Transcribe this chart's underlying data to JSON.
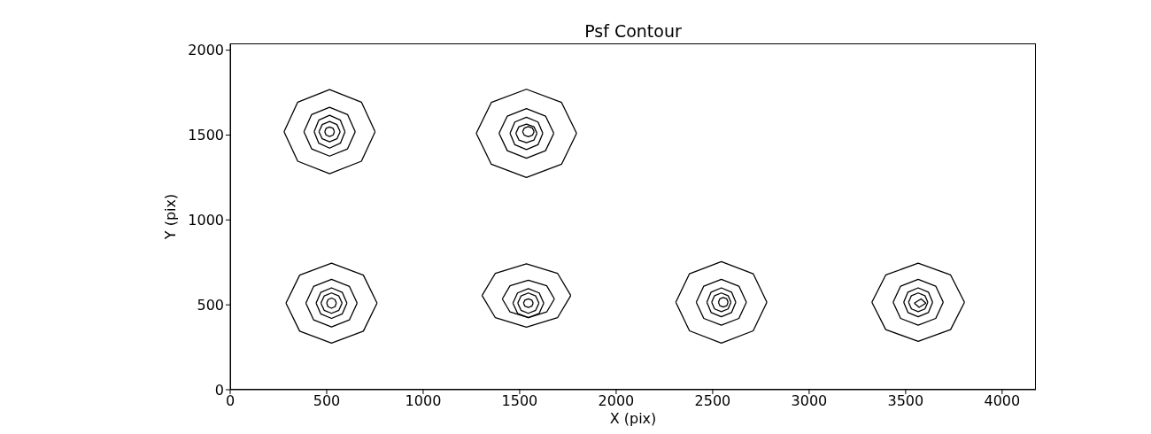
{
  "chart_data": {
    "type": "line",
    "title": "Psf Contour",
    "xlabel": "X (pix)",
    "ylabel": "Y (pix)",
    "xlim": [
      0,
      4175
    ],
    "ylim": [
      0,
      2040
    ],
    "xticks": [
      0,
      500,
      1000,
      1500,
      2000,
      2500,
      3000,
      3500,
      4000
    ],
    "yticks": [
      0,
      500,
      1000,
      1500,
      2000
    ],
    "marker": "none",
    "line_style": "solid",
    "series": [
      {
        "color": "#000000",
        "x": [
          279,
          350,
          515,
          680,
          751
        ],
        "values": [
          1520,
          1694,
          1768,
          1694,
          1520
        ]
      },
      {
        "color": "#000000",
        "x": [
          279,
          350,
          515,
          680,
          751
        ],
        "values": [
          1520,
          1346,
          1272,
          1346,
          1520
        ]
      },
      {
        "color": "#000000",
        "x": [
          382,
          422,
          515,
          608,
          648
        ],
        "values": [
          1520,
          1621,
          1664,
          1621,
          1520
        ]
      },
      {
        "color": "#000000",
        "x": [
          382,
          422,
          515,
          608,
          648
        ],
        "values": [
          1520,
          1419,
          1376,
          1419,
          1520
        ]
      },
      {
        "color": "#000000",
        "x": [
          435,
          459,
          515,
          571,
          595
        ],
        "values": [
          1520,
          1588,
          1617,
          1588,
          1520
        ]
      },
      {
        "color": "#000000",
        "x": [
          435,
          459,
          515,
          571,
          595
        ],
        "values": [
          1520,
          1452,
          1423,
          1452,
          1520
        ]
      },
      {
        "color": "#000000",
        "x": [
          460,
          477,
          515,
          553,
          570
        ],
        "values": [
          1520,
          1562,
          1580,
          1562,
          1520
        ]
      },
      {
        "color": "#000000",
        "x": [
          460,
          477,
          515,
          553,
          570
        ],
        "values": [
          1520,
          1478,
          1460,
          1478,
          1520
        ]
      },
      {
        "color": "#000000",
        "x": [
          490,
          497,
          515,
          533,
          540
        ],
        "values": [
          1520,
          1540,
          1548,
          1540,
          1520
        ]
      },
      {
        "color": "#000000",
        "x": [
          490,
          497,
          515,
          533,
          540
        ],
        "values": [
          1520,
          1500,
          1492,
          1500,
          1520
        ]
      },
      {
        "color": "#000000",
        "x": [
          1275,
          1353,
          1535,
          1717,
          1795
        ],
        "values": [
          1510,
          1692,
          1770,
          1692,
          1510
        ]
      },
      {
        "color": "#000000",
        "x": [
          1275,
          1353,
          1535,
          1717,
          1795
        ],
        "values": [
          1510,
          1328,
          1250,
          1328,
          1510
        ]
      },
      {
        "color": "#000000",
        "x": [
          1393,
          1436,
          1535,
          1634,
          1677
        ],
        "values": [
          1510,
          1612,
          1656,
          1612,
          1510
        ]
      },
      {
        "color": "#000000",
        "x": [
          1393,
          1436,
          1535,
          1634,
          1677
        ],
        "values": [
          1510,
          1408,
          1364,
          1408,
          1510
        ]
      },
      {
        "color": "#000000",
        "x": [
          1450,
          1475,
          1535,
          1595,
          1620
        ],
        "values": [
          1510,
          1577,
          1605,
          1577,
          1510
        ]
      },
      {
        "color": "#000000",
        "x": [
          1450,
          1475,
          1535,
          1595,
          1620
        ],
        "values": [
          1510,
          1443,
          1415,
          1443,
          1510
        ]
      },
      {
        "color": "#000000",
        "x": [
          1480,
          1496,
          1535,
          1574,
          1590
        ],
        "values": [
          1510,
          1549,
          1565,
          1549,
          1510
        ]
      },
      {
        "color": "#000000",
        "x": [
          1480,
          1496,
          1535,
          1574,
          1590
        ],
        "values": [
          1510,
          1471,
          1455,
          1471,
          1510
        ]
      },
      {
        "color": "#000000",
        "x": [
          1515,
          1524,
          1545,
          1566,
          1575
        ],
        "values": [
          1520,
          1541,
          1550,
          1541,
          1520
        ]
      },
      {
        "color": "#000000",
        "x": [
          1515,
          1524,
          1545,
          1566,
          1575
        ],
        "values": [
          1520,
          1499,
          1490,
          1499,
          1520
        ]
      },
      {
        "color": "#000000",
        "x": [
          289,
          360,
          525,
          690,
          761
        ],
        "values": [
          510,
          675,
          745,
          675,
          510
        ]
      },
      {
        "color": "#000000",
        "x": [
          289,
          360,
          525,
          690,
          761
        ],
        "values": [
          510,
          345,
          275,
          345,
          510
        ]
      },
      {
        "color": "#000000",
        "x": [
          392,
          432,
          525,
          618,
          658
        ],
        "values": [
          510,
          608,
          650,
          608,
          510
        ]
      },
      {
        "color": "#000000",
        "x": [
          392,
          432,
          525,
          618,
          658
        ],
        "values": [
          510,
          412,
          370,
          412,
          510
        ]
      },
      {
        "color": "#000000",
        "x": [
          445,
          469,
          525,
          581,
          605
        ],
        "values": [
          510,
          573,
          600,
          573,
          510
        ]
      },
      {
        "color": "#000000",
        "x": [
          445,
          469,
          525,
          581,
          605
        ],
        "values": [
          510,
          447,
          420,
          447,
          510
        ]
      },
      {
        "color": "#000000",
        "x": [
          470,
          487,
          525,
          563,
          580
        ],
        "values": [
          510,
          552,
          570,
          552,
          510
        ]
      },
      {
        "color": "#000000",
        "x": [
          470,
          487,
          525,
          563,
          580
        ],
        "values": [
          510,
          468,
          450,
          468,
          510
        ]
      },
      {
        "color": "#000000",
        "x": [
          500,
          507,
          525,
          543,
          550
        ],
        "values": [
          510,
          531,
          540,
          531,
          510
        ]
      },
      {
        "color": "#000000",
        "x": [
          500,
          507,
          525,
          543,
          550
        ],
        "values": [
          510,
          489,
          480,
          489,
          510
        ]
      },
      {
        "color": "#000000",
        "x": [
          1305,
          1374,
          1535,
          1696,
          1765
        ],
        "values": [
          555,
          686,
          742,
          686,
          555
        ]
      },
      {
        "color": "#000000",
        "x": [
          1305,
          1374,
          1535,
          1696,
          1765
        ],
        "values": [
          555,
          424,
          368,
          424,
          555
        ]
      },
      {
        "color": "#000000",
        "x": [
          1410,
          1450,
          1545,
          1640,
          1680
        ],
        "values": [
          535,
          612,
          645,
          612,
          535
        ]
      },
      {
        "color": "#000000",
        "x": [
          1410,
          1450,
          1545,
          1640,
          1680
        ],
        "values": [
          535,
          458,
          425,
          458,
          535
        ]
      },
      {
        "color": "#000000",
        "x": [
          1465,
          1489,
          1545,
          1601,
          1625
        ],
        "values": [
          510,
          570,
          595,
          570,
          510
        ]
      },
      {
        "color": "#000000",
        "x": [
          1465,
          1489,
          1545,
          1601,
          1625
        ],
        "values": [
          510,
          450,
          425,
          450,
          510
        ]
      },
      {
        "color": "#000000",
        "x": [
          1490,
          1507,
          1545,
          1583,
          1600
        ],
        "values": [
          510,
          552,
          570,
          552,
          510
        ]
      },
      {
        "color": "#000000",
        "x": [
          1490,
          1507,
          1545,
          1583,
          1600
        ],
        "values": [
          510,
          468,
          450,
          468,
          510
        ]
      },
      {
        "color": "#000000",
        "x": [
          1520,
          1527,
          1545,
          1563,
          1570
        ],
        "values": [
          510,
          528,
          535,
          528,
          510
        ]
      },
      {
        "color": "#000000",
        "x": [
          1520,
          1527,
          1545,
          1563,
          1570
        ],
        "values": [
          510,
          492,
          485,
          492,
          510
        ]
      },
      {
        "color": "#000000",
        "x": [
          2309,
          2380,
          2545,
          2710,
          2781
        ],
        "values": [
          515,
          683,
          755,
          683,
          515
        ]
      },
      {
        "color": "#000000",
        "x": [
          2309,
          2380,
          2545,
          2710,
          2781
        ],
        "values": [
          515,
          347,
          275,
          347,
          515
        ]
      },
      {
        "color": "#000000",
        "x": [
          2415,
          2454,
          2545,
          2636,
          2675
        ],
        "values": [
          515,
          610,
          650,
          610,
          515
        ]
      },
      {
        "color": "#000000",
        "x": [
          2415,
          2454,
          2545,
          2636,
          2675
        ],
        "values": [
          515,
          420,
          380,
          420,
          515
        ]
      },
      {
        "color": "#000000",
        "x": [
          2470,
          2492,
          2545,
          2598,
          2620
        ],
        "values": [
          515,
          575,
          600,
          575,
          515
        ]
      },
      {
        "color": "#000000",
        "x": [
          2470,
          2492,
          2545,
          2598,
          2620
        ],
        "values": [
          515,
          455,
          430,
          455,
          515
        ]
      },
      {
        "color": "#000000",
        "x": [
          2495,
          2510,
          2545,
          2580,
          2595
        ],
        "values": [
          515,
          554,
          570,
          554,
          515
        ]
      },
      {
        "color": "#000000",
        "x": [
          2495,
          2510,
          2545,
          2580,
          2595
        ],
        "values": [
          515,
          476,
          460,
          476,
          515
        ]
      },
      {
        "color": "#000000",
        "x": [
          2530,
          2537,
          2555,
          2573,
          2580
        ],
        "values": [
          515,
          535,
          543,
          535,
          515
        ]
      },
      {
        "color": "#000000",
        "x": [
          2530,
          2537,
          2555,
          2573,
          2580
        ],
        "values": [
          515,
          495,
          487,
          495,
          515
        ]
      },
      {
        "color": "#000000",
        "x": [
          3325,
          3397,
          3565,
          3733,
          3805
        ],
        "values": [
          515,
          676,
          745,
          676,
          515
        ]
      },
      {
        "color": "#000000",
        "x": [
          3325,
          3397,
          3565,
          3733,
          3805
        ],
        "values": [
          515,
          354,
          285,
          354,
          515
        ]
      },
      {
        "color": "#000000",
        "x": [
          3435,
          3474,
          3565,
          3656,
          3695
        ],
        "values": [
          515,
          610,
          650,
          610,
          515
        ]
      },
      {
        "color": "#000000",
        "x": [
          3435,
          3474,
          3565,
          3656,
          3695
        ],
        "values": [
          515,
          420,
          380,
          420,
          515
        ]
      },
      {
        "color": "#000000",
        "x": [
          3490,
          3512,
          3565,
          3618,
          3640
        ],
        "values": [
          515,
          575,
          600,
          575,
          515
        ]
      },
      {
        "color": "#000000",
        "x": [
          3490,
          3512,
          3565,
          3618,
          3640
        ],
        "values": [
          515,
          455,
          430,
          455,
          515
        ]
      },
      {
        "color": "#000000",
        "x": [
          3515,
          3530,
          3565,
          3600,
          3615
        ],
        "values": [
          515,
          554,
          570,
          554,
          515
        ]
      },
      {
        "color": "#000000",
        "x": [
          3515,
          3530,
          3565,
          3600,
          3615
        ],
        "values": [
          515,
          476,
          460,
          476,
          515
        ]
      },
      {
        "color": "#000000",
        "x": [
          3545,
          3580,
          3605
        ],
        "values": [
          510,
          535,
          510
        ]
      },
      {
        "color": "#000000",
        "x": [
          3545,
          3570,
          3605
        ],
        "values": [
          510,
          485,
          510
        ]
      }
    ]
  }
}
